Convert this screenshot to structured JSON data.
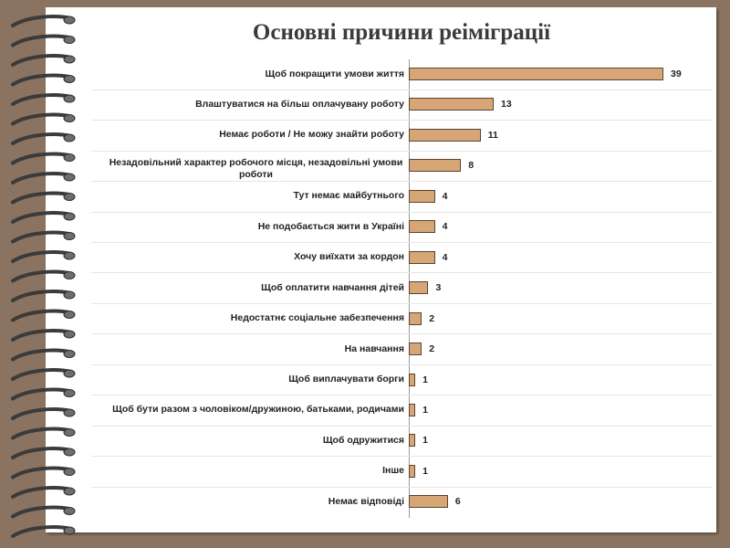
{
  "chart_data": {
    "type": "bar",
    "orientation": "horizontal",
    "title": "Основні причини реіміграції",
    "categories": [
      "Щоб покращити умови життя",
      "Влаштуватися на більш оплачувану роботу",
      "Немає роботи / Не можу знайти роботу",
      "Незадовільний характер робочого місця, незадовільні умови роботи",
      "Тут немає майбутнього",
      "Не подобається жити в Україні",
      "Хочу виїхати за кордон",
      "Щоб оплатити навчання дітей",
      "Недостатнє соціальне забезпечення",
      "На навчання",
      "Щоб виплачувати борги",
      "Щоб бути разом з чоловіком/дружиною, батьками, родичами",
      "Щоб одружитися",
      "Інше",
      "Немає відповіді"
    ],
    "values": [
      39,
      13,
      11,
      8,
      4,
      4,
      4,
      3,
      2,
      2,
      1,
      1,
      1,
      1,
      6
    ],
    "color": "#d6a676"
  }
}
